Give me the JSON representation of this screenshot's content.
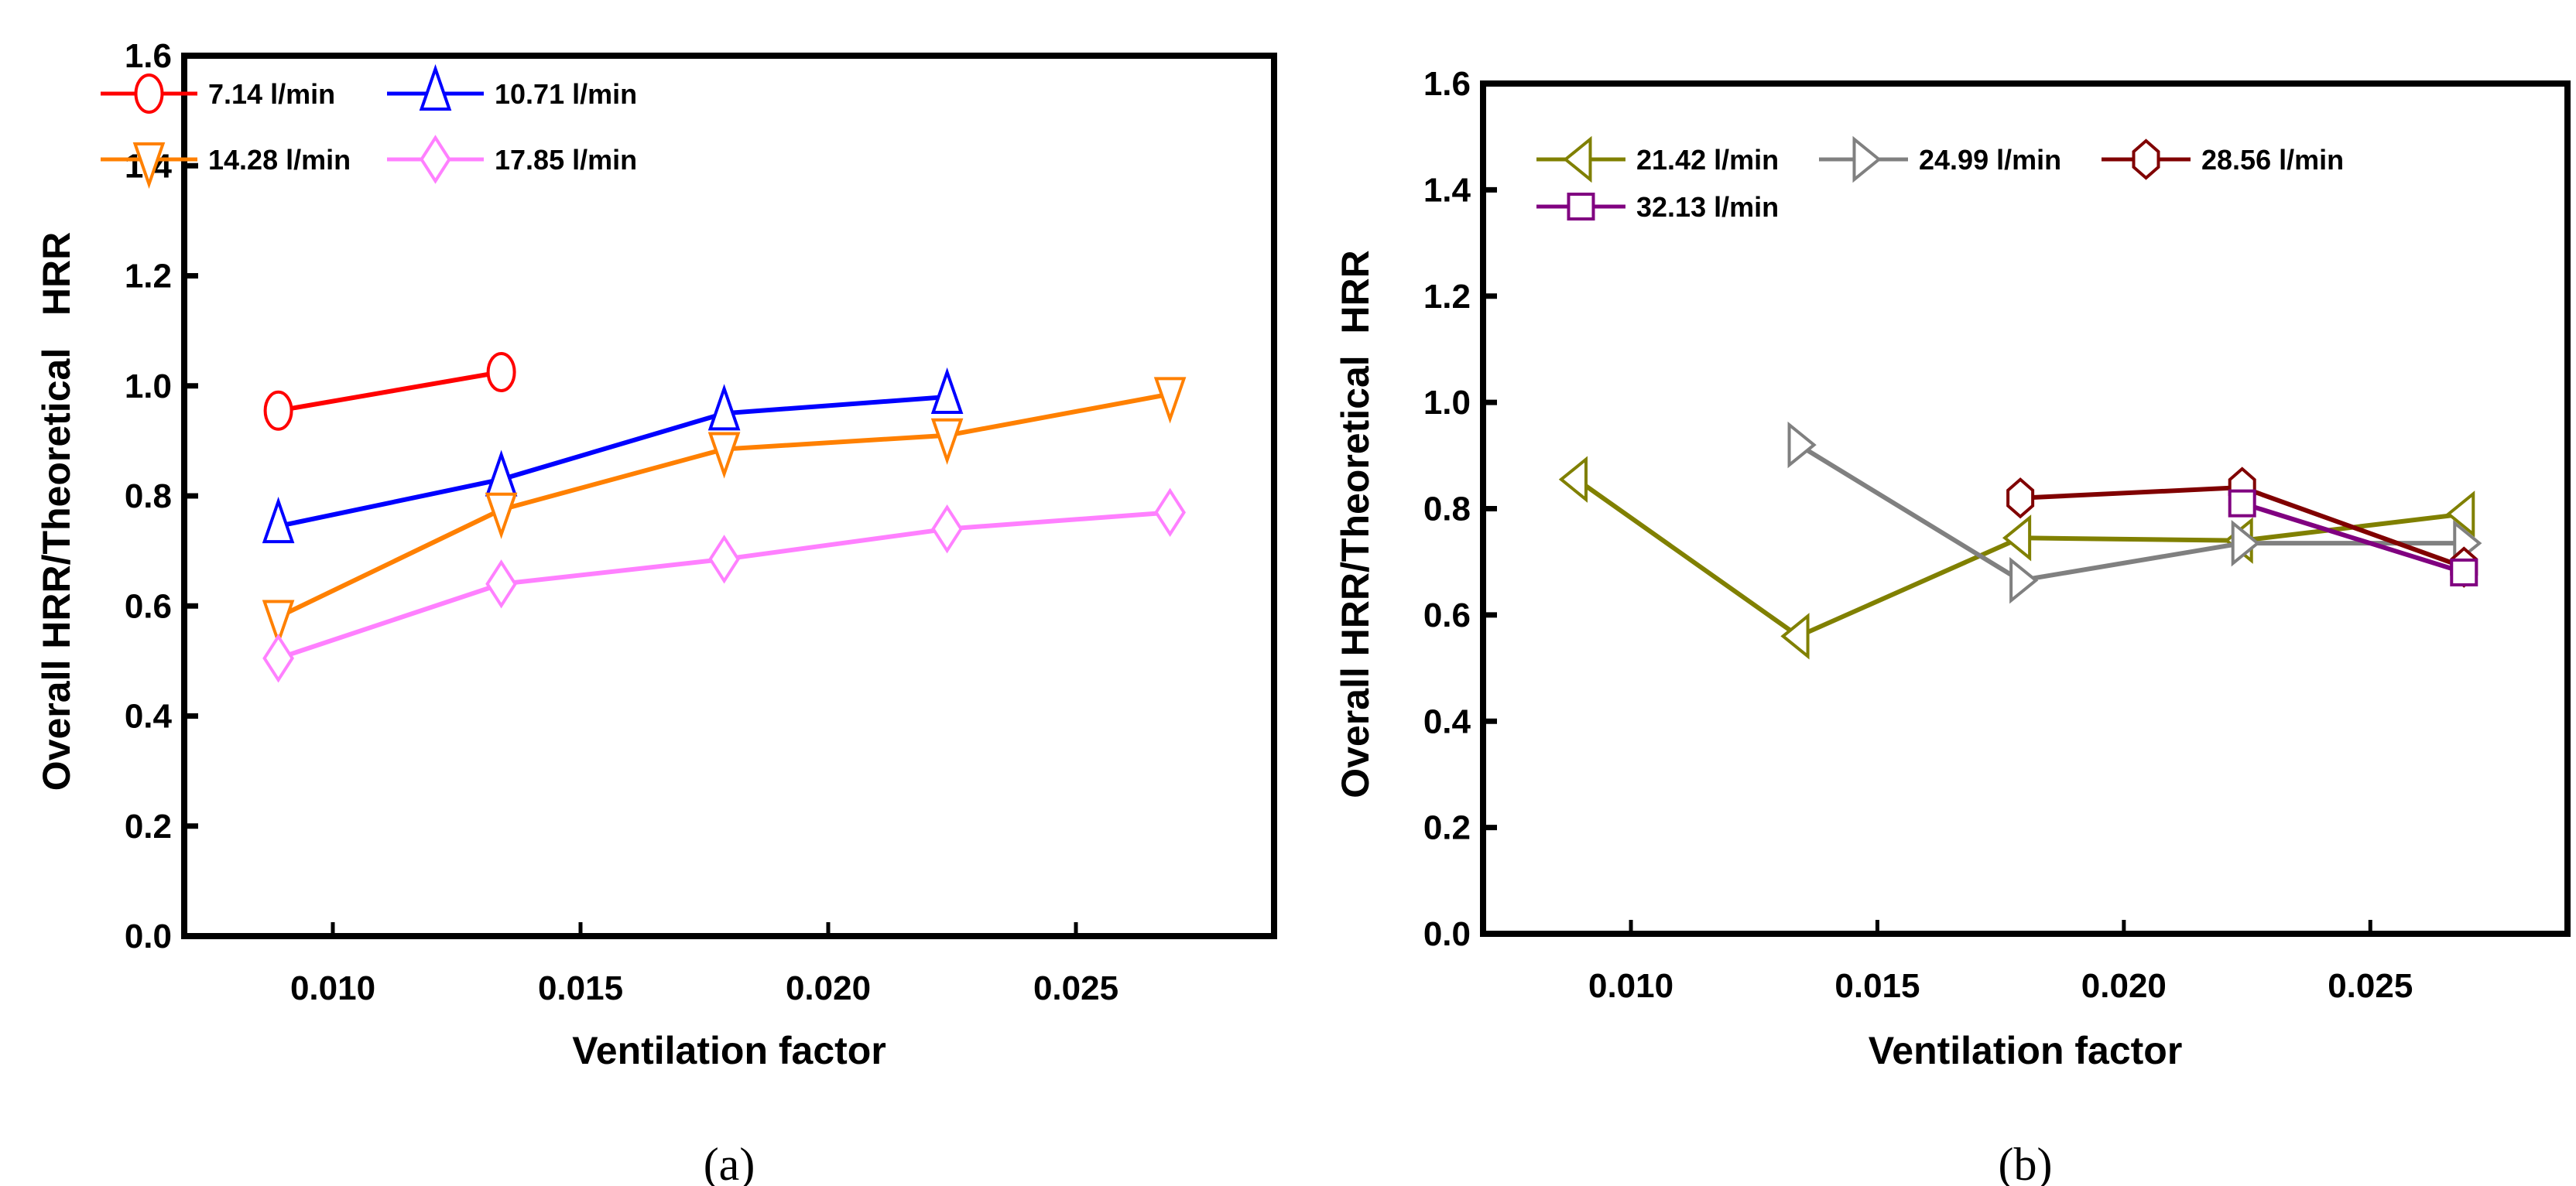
{
  "chart_data": [
    {
      "type": "line",
      "panel_label": "(a)",
      "xlabel": "Ventilation factor",
      "ylabel": "Overall HRR/Theoretical   HRR",
      "xlim": [
        0.007,
        0.029
      ],
      "ylim": [
        0.0,
        1.6
      ],
      "xticks": [
        "0.010",
        "0.015",
        "0.020",
        "0.025"
      ],
      "yticks": [
        "0.0",
        "0.2",
        "0.4",
        "0.6",
        "0.8",
        "1.0",
        "1.2",
        "1.4",
        "1.6"
      ],
      "legend_placement": "top-left",
      "series": [
        {
          "name": "7.14 l/min",
          "color": "#ff0000",
          "marker": "circle",
          "x": [
            0.0089,
            0.0134
          ],
          "y": [
            0.955,
            1.025
          ]
        },
        {
          "name": "10.71 l/min",
          "color": "#0000ff",
          "marker": "triangle-up",
          "x": [
            0.0089,
            0.0134,
            0.0179,
            0.0224
          ],
          "y": [
            0.745,
            0.83,
            0.95,
            0.98
          ]
        },
        {
          "name": "14.28 l/min",
          "color": "#ff8000",
          "marker": "triangle-down",
          "x": [
            0.0089,
            0.0134,
            0.0179,
            0.0224,
            0.0269
          ],
          "y": [
            0.58,
            0.775,
            0.885,
            0.91,
            0.985
          ]
        },
        {
          "name": "17.85 l/min",
          "color": "#ff80ff",
          "marker": "diamond",
          "x": [
            0.0089,
            0.0134,
            0.0179,
            0.0224,
            0.0269
          ],
          "y": [
            0.505,
            0.64,
            0.685,
            0.74,
            0.77
          ]
        }
      ]
    },
    {
      "type": "line",
      "panel_label": "(b)",
      "xlabel": "Ventilation factor",
      "ylabel": "Overall HRR/Theoretical  HRR",
      "xlim": [
        0.007,
        0.029
      ],
      "ylim": [
        0.0,
        1.6
      ],
      "xticks": [
        "0.010",
        "0.015",
        "0.020",
        "0.025"
      ],
      "yticks": [
        "0.0",
        "0.2",
        "0.4",
        "0.6",
        "0.8",
        "1.0",
        "1.2",
        "1.4",
        "1.6"
      ],
      "legend_placement": "top-left",
      "series": [
        {
          "name": "21.42 l/min",
          "color": "#808000",
          "marker": "triangle-left",
          "x": [
            0.0089,
            0.0134,
            0.0179,
            0.0224,
            0.0269
          ],
          "y": [
            0.855,
            0.56,
            0.745,
            0.74,
            0.79
          ]
        },
        {
          "name": "24.99 l/min",
          "color": "#808080",
          "marker": "triangle-right",
          "x": [
            0.0134,
            0.0179,
            0.0224,
            0.0269
          ],
          "y": [
            0.92,
            0.665,
            0.735,
            0.735
          ]
        },
        {
          "name": "28.56 l/min",
          "color": "#800000",
          "marker": "hexagon",
          "x": [
            0.0179,
            0.0224,
            0.0269
          ],
          "y": [
            0.82,
            0.84,
            0.69
          ]
        },
        {
          "name": "32.13 l/min",
          "color": "#800080",
          "marker": "square",
          "x": [
            0.0224,
            0.0269
          ],
          "y": [
            0.81,
            0.68
          ]
        }
      ]
    }
  ]
}
